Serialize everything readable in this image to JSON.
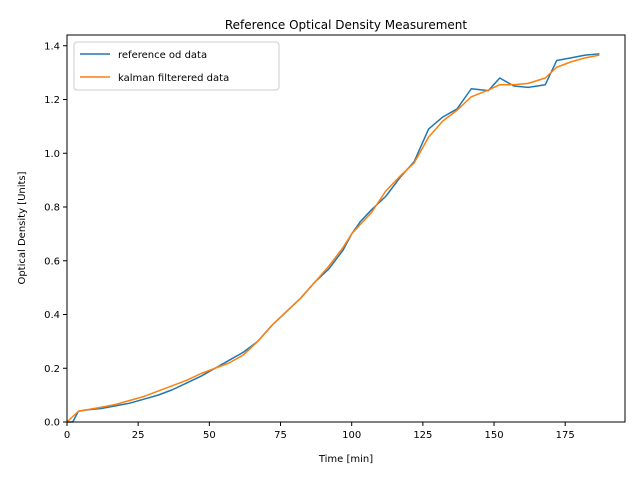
{
  "chart_data": {
    "type": "line",
    "title": "Reference Optical Density Measurement",
    "xlabel": "Time [min]",
    "ylabel": "Optical Density [Units]",
    "xlim": [
      0,
      196
    ],
    "ylim": [
      0,
      1.44
    ],
    "xticks": [
      0,
      25,
      50,
      75,
      100,
      125,
      150,
      175
    ],
    "yticks": [
      0.0,
      0.2,
      0.4,
      0.6,
      0.8,
      1.0,
      1.2,
      1.4
    ],
    "xtick_labels": [
      "0",
      "25",
      "50",
      "75",
      "100",
      "125",
      "150",
      "175"
    ],
    "ytick_labels": [
      "0.0",
      "0.2",
      "0.4",
      "0.6",
      "0.8",
      "1.0",
      "1.2",
      "1.4"
    ],
    "grid": false,
    "legend_position": "top-left",
    "series": [
      {
        "name": "reference od data",
        "color": "#1f77b4",
        "x": [
          0,
          2,
          4,
          7,
          12,
          17,
          22,
          27,
          32,
          37,
          42,
          47,
          52,
          57,
          62,
          67,
          72,
          77,
          82,
          87,
          92,
          97,
          100,
          103,
          107,
          112,
          117,
          122,
          127,
          132,
          137,
          142,
          148,
          152,
          157,
          162,
          168,
          172,
          177,
          182,
          187
        ],
        "y": [
          0.0,
          0.0,
          0.04,
          0.045,
          0.05,
          0.06,
          0.07,
          0.085,
          0.1,
          0.12,
          0.145,
          0.17,
          0.2,
          0.23,
          0.26,
          0.3,
          0.36,
          0.41,
          0.46,
          0.52,
          0.57,
          0.64,
          0.7,
          0.745,
          0.79,
          0.84,
          0.91,
          0.97,
          1.09,
          1.135,
          1.165,
          1.24,
          1.233,
          1.28,
          1.25,
          1.245,
          1.255,
          1.345,
          1.355,
          1.365,
          1.37
        ]
      },
      {
        "name": "kalman filterered data",
        "color": "#ff7f0e",
        "x": [
          0,
          4,
          12,
          17,
          22,
          27,
          32,
          37,
          42,
          47,
          52,
          57,
          62,
          67,
          72,
          77,
          82,
          87,
          92,
          97,
          100,
          103,
          107,
          112,
          117,
          122,
          127,
          132,
          137,
          142,
          148,
          152,
          157,
          162,
          168,
          172,
          177,
          182,
          187
        ],
        "y": [
          0.0,
          0.04,
          0.055,
          0.065,
          0.08,
          0.095,
          0.115,
          0.135,
          0.155,
          0.18,
          0.2,
          0.22,
          0.25,
          0.3,
          0.36,
          0.41,
          0.46,
          0.52,
          0.58,
          0.65,
          0.7,
          0.735,
          0.78,
          0.86,
          0.915,
          0.965,
          1.06,
          1.12,
          1.16,
          1.21,
          1.235,
          1.255,
          1.255,
          1.26,
          1.28,
          1.32,
          1.34,
          1.355,
          1.365
        ]
      }
    ]
  }
}
